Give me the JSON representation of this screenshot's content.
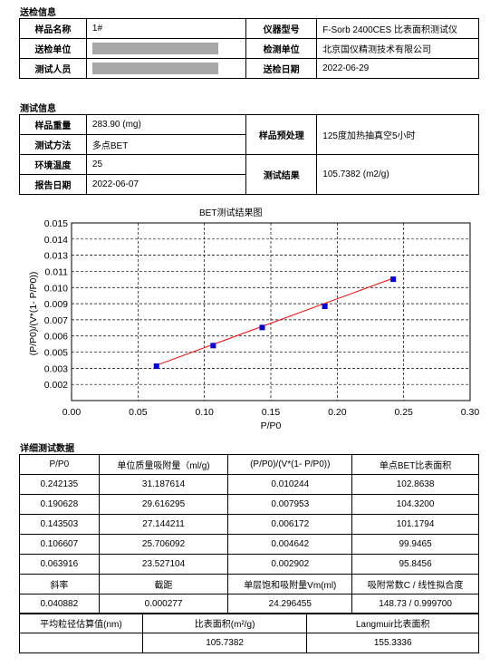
{
  "section1": {
    "title": "送检信息",
    "sample_name_label": "样品名称",
    "sample_name": "1#",
    "instrument_label": "仪器型号",
    "instrument": "F-Sorb 2400CES 比表面积测试仪",
    "sender_unit_label": "送检单位",
    "test_unit_label": "检测单位",
    "test_unit": "北京国仪精测技术有限公司",
    "tester_label": "测试人员",
    "send_date_label": "送检日期",
    "send_date": "2022-06-29"
  },
  "section2": {
    "title": "测试信息",
    "weight_label": "样品重量",
    "weight": "283.90 (mg)",
    "pretreat_label": "样品预处理",
    "pretreat": "125度加热抽真空5小时",
    "method_label": "测试方法",
    "method": "多点BET",
    "env_temp_label": "环境温度",
    "env_temp": "25",
    "result_label": "测试结果",
    "result": "105.7382 (m2/g)",
    "report_date_label": "报告日期",
    "report_date": "2022-06-07"
  },
  "chart_data": {
    "type": "scatter",
    "title": "BET测试结果图",
    "xlabel": "P/P0",
    "ylabel": "(P/P0)/(V*(1- P/P0))",
    "xlim": [
      0,
      0.3
    ],
    "ylim": [
      0,
      0.015
    ],
    "x_ticks": [
      "0.00",
      "0.05",
      "0.10",
      "0.15",
      "0.20",
      "0.25",
      "0.30"
    ],
    "y_ticks": [
      "0.002",
      "0.003",
      "0.005",
      "0.006",
      "0.007",
      "0.009",
      "0.010",
      "0.011",
      "0.013",
      "0.014",
      "0.015"
    ],
    "grid": true,
    "series": [
      {
        "x": [
          0.063916,
          0.106607,
          0.143503,
          0.190628,
          0.242135
        ],
        "y": [
          0.002902,
          0.004642,
          0.006172,
          0.007953,
          0.010244
        ]
      }
    ],
    "fit_line": {
      "x": [
        0.063916,
        0.242135
      ],
      "y": [
        0.00298,
        0.010333
      ]
    },
    "colors": {
      "points": "#0000dd",
      "fit": "#ff0000"
    }
  },
  "section3": {
    "title": "详细测试数据",
    "headers": [
      "P/P0",
      "单位质量吸附量（ml/g)",
      "(P/P0)/(V*(1- P/P0))",
      "单点BET比表面积"
    ],
    "rows": [
      [
        "0.242135",
        "31.187614",
        "0.010244",
        "102.8638"
      ],
      [
        "0.190628",
        "29.616295",
        "0.007953",
        "104.3200"
      ],
      [
        "0.143503",
        "27.144211",
        "0.006172",
        "101.1794"
      ],
      [
        "0.106607",
        "25.706092",
        "0.004642",
        "99.9465"
      ],
      [
        "0.063916",
        "23.527104",
        "0.002902",
        "95.8456"
      ]
    ],
    "fit_headers": [
      "斜率",
      "截距",
      "单层饱和吸附量Vm(ml)",
      "吸附常数C / 线性拟合度"
    ],
    "fit_values": [
      "0.040882",
      "0.000277",
      "24.296455",
      "148.73 / 0.999700"
    ],
    "summary_headers": [
      "平均粒径估算值(nm)",
      "比表面积(m²/g)",
      "Langmuir比表面积"
    ],
    "summary_values": [
      "",
      "105.7382",
      "155.3336"
    ]
  }
}
